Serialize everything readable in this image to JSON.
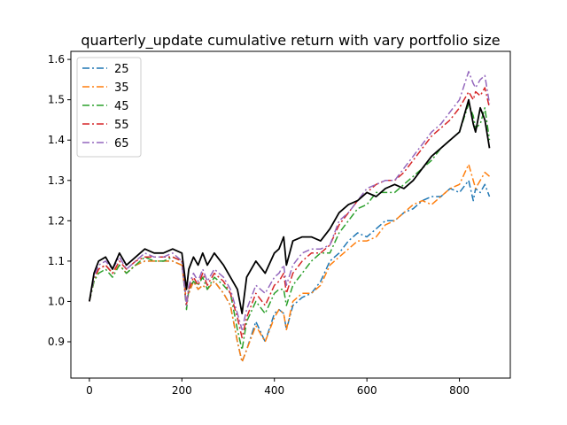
{
  "chart_data": {
    "type": "line",
    "title": "quarterly_update cumulative return with vary portfolio size",
    "xlabel": "",
    "ylabel": "",
    "xlim": [
      -40,
      910
    ],
    "ylim": [
      0.81,
      1.62
    ],
    "x_ticks": [
      0,
      200,
      400,
      600,
      800
    ],
    "y_ticks": [
      0.9,
      1.0,
      1.1,
      1.2,
      1.3,
      1.4,
      1.5,
      1.6
    ],
    "x_tick_labels": [
      "0",
      "200",
      "400",
      "600",
      "800"
    ],
    "y_tick_labels": [
      "0.9",
      "1.0",
      "1.1",
      "1.2",
      "1.3",
      "1.4",
      "1.5",
      "1.6"
    ],
    "grid": false,
    "legend_position": "upper-left",
    "x": [
      0,
      10,
      20,
      35,
      50,
      65,
      80,
      100,
      120,
      140,
      160,
      180,
      200,
      210,
      215,
      225,
      235,
      245,
      255,
      270,
      290,
      305,
      320,
      330,
      340,
      360,
      380,
      400,
      410,
      420,
      426,
      440,
      460,
      480,
      500,
      520,
      540,
      560,
      580,
      600,
      620,
      640,
      660,
      680,
      700,
      720,
      740,
      760,
      780,
      800,
      820,
      830,
      835,
      845,
      855,
      865
    ],
    "series": [
      {
        "name": "25",
        "color": "#1f77b4",
        "dash": "8,3,2,3",
        "values": [
          1.0,
          1.05,
          1.08,
          1.09,
          1.07,
          1.09,
          1.07,
          1.09,
          1.1,
          1.1,
          1.1,
          1.1,
          1.09,
          1.0,
          1.02,
          1.05,
          1.03,
          1.04,
          1.03,
          1.05,
          1.02,
          0.99,
          0.9,
          0.85,
          0.88,
          0.95,
          0.9,
          0.97,
          0.98,
          0.97,
          0.93,
          0.99,
          1.01,
          1.02,
          1.05,
          1.1,
          1.12,
          1.15,
          1.17,
          1.16,
          1.18,
          1.2,
          1.2,
          1.22,
          1.23,
          1.25,
          1.26,
          1.26,
          1.28,
          1.27,
          1.3,
          1.25,
          1.28,
          1.27,
          1.29,
          1.26
        ]
      },
      {
        "name": "35",
        "color": "#ff7f0e",
        "dash": "8,3,2,3",
        "values": [
          1.0,
          1.05,
          1.08,
          1.09,
          1.07,
          1.09,
          1.07,
          1.09,
          1.1,
          1.1,
          1.1,
          1.1,
          1.09,
          1.0,
          1.02,
          1.05,
          1.03,
          1.04,
          1.03,
          1.05,
          1.02,
          0.99,
          0.9,
          0.85,
          0.88,
          0.94,
          0.9,
          0.96,
          0.98,
          0.97,
          0.93,
          1.0,
          1.02,
          1.02,
          1.04,
          1.09,
          1.11,
          1.13,
          1.15,
          1.15,
          1.16,
          1.19,
          1.2,
          1.22,
          1.24,
          1.25,
          1.24,
          1.26,
          1.28,
          1.29,
          1.34,
          1.3,
          1.28,
          1.3,
          1.32,
          1.31
        ]
      },
      {
        "name": "45",
        "color": "#2ca02c",
        "dash": "8,3,2,3",
        "values": [
          1.0,
          1.05,
          1.07,
          1.08,
          1.06,
          1.09,
          1.07,
          1.09,
          1.11,
          1.1,
          1.1,
          1.11,
          1.1,
          0.98,
          1.03,
          1.05,
          1.04,
          1.06,
          1.03,
          1.06,
          1.04,
          1.02,
          0.93,
          0.88,
          0.95,
          1.0,
          0.97,
          1.02,
          1.03,
          1.03,
          0.99,
          1.04,
          1.07,
          1.1,
          1.12,
          1.12,
          1.17,
          1.2,
          1.23,
          1.24,
          1.27,
          1.27,
          1.27,
          1.29,
          1.31,
          1.33,
          1.35,
          1.38,
          1.4,
          1.42,
          1.49,
          1.46,
          1.43,
          1.44,
          1.48,
          1.4
        ]
      },
      {
        "name": "55",
        "color": "#d62728",
        "dash": "8,3,2,3",
        "values": [
          1.0,
          1.06,
          1.08,
          1.09,
          1.07,
          1.1,
          1.08,
          1.1,
          1.11,
          1.11,
          1.11,
          1.11,
          1.1,
          0.99,
          1.03,
          1.06,
          1.04,
          1.07,
          1.04,
          1.07,
          1.05,
          1.02,
          0.96,
          0.91,
          0.96,
          1.02,
          0.99,
          1.04,
          1.05,
          1.07,
          1.02,
          1.07,
          1.1,
          1.12,
          1.12,
          1.14,
          1.19,
          1.22,
          1.25,
          1.27,
          1.29,
          1.3,
          1.3,
          1.32,
          1.35,
          1.38,
          1.41,
          1.43,
          1.45,
          1.48,
          1.52,
          1.5,
          1.52,
          1.51,
          1.53,
          1.48
        ]
      },
      {
        "name": "65",
        "color": "#9467bd",
        "dash": "8,3,2,3",
        "values": [
          1.0,
          1.06,
          1.09,
          1.1,
          1.08,
          1.11,
          1.08,
          1.1,
          1.12,
          1.11,
          1.11,
          1.12,
          1.1,
          0.99,
          1.04,
          1.07,
          1.05,
          1.08,
          1.05,
          1.08,
          1.06,
          1.03,
          0.97,
          0.93,
          0.98,
          1.04,
          1.02,
          1.06,
          1.07,
          1.09,
          1.04,
          1.09,
          1.12,
          1.13,
          1.13,
          1.14,
          1.2,
          1.22,
          1.25,
          1.28,
          1.29,
          1.3,
          1.3,
          1.33,
          1.36,
          1.39,
          1.42,
          1.44,
          1.47,
          1.5,
          1.57,
          1.54,
          1.53,
          1.55,
          1.56,
          1.49
        ]
      },
      {
        "name": "",
        "color": "#000000",
        "dash": "",
        "values": [
          1.0,
          1.07,
          1.1,
          1.11,
          1.08,
          1.12,
          1.09,
          1.11,
          1.13,
          1.12,
          1.12,
          1.13,
          1.12,
          1.03,
          1.08,
          1.11,
          1.09,
          1.12,
          1.09,
          1.12,
          1.09,
          1.06,
          1.03,
          0.97,
          1.06,
          1.1,
          1.07,
          1.12,
          1.13,
          1.16,
          1.09,
          1.15,
          1.16,
          1.16,
          1.15,
          1.18,
          1.22,
          1.24,
          1.25,
          1.27,
          1.26,
          1.28,
          1.29,
          1.28,
          1.3,
          1.33,
          1.36,
          1.38,
          1.4,
          1.42,
          1.5,
          1.44,
          1.42,
          1.48,
          1.45,
          1.38
        ]
      }
    ]
  }
}
